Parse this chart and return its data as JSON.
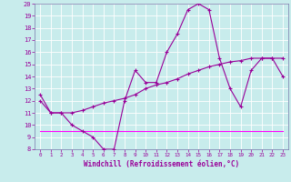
{
  "xlabel": "Windchill (Refroidissement éolien,°C)",
  "background_color": "#c8ecec",
  "line1_x": [
    0,
    1,
    2,
    3,
    4,
    5,
    6,
    7,
    8,
    9,
    10,
    11,
    12,
    13,
    14,
    15,
    16,
    17,
    18,
    19,
    20,
    21,
    22,
    23
  ],
  "line1_y": [
    12.5,
    11.0,
    11.0,
    10.0,
    9.5,
    9.0,
    8.0,
    8.0,
    12.0,
    14.5,
    13.5,
    13.5,
    16.0,
    17.5,
    19.5,
    20.0,
    19.5,
    15.5,
    13.0,
    11.5,
    14.5,
    15.5,
    15.5,
    14.0
  ],
  "line2_x": [
    0,
    1,
    2,
    3,
    4,
    5,
    6,
    7,
    8,
    9,
    10,
    11,
    12,
    13,
    14,
    15,
    16,
    17,
    18,
    19,
    20,
    21,
    22,
    23
  ],
  "line2_y": [
    12.0,
    11.0,
    11.0,
    11.0,
    11.2,
    11.5,
    11.8,
    12.0,
    12.2,
    12.5,
    13.0,
    13.3,
    13.5,
    13.8,
    14.2,
    14.5,
    14.8,
    15.0,
    15.2,
    15.3,
    15.5,
    15.5,
    15.5,
    15.5
  ],
  "line3_x": [
    0,
    23
  ],
  "line3_y": [
    9.5,
    9.5
  ],
  "line1_color": "#990099",
  "line2_color": "#990099",
  "line3_color": "#ff00ff",
  "ylim": [
    8,
    20
  ],
  "xlim": [
    -0.5,
    23.5
  ],
  "yticks": [
    8,
    9,
    10,
    11,
    12,
    13,
    14,
    15,
    16,
    17,
    18,
    19,
    20
  ],
  "xticks": [
    0,
    1,
    2,
    3,
    4,
    5,
    6,
    7,
    8,
    9,
    10,
    11,
    12,
    13,
    14,
    15,
    16,
    17,
    18,
    19,
    20,
    21,
    22,
    23
  ],
  "grid_color": "#ffffff",
  "spine_color": "#7777aa",
  "tick_color": "#990099",
  "label_color": "#990099",
  "xlabel_fontsize": 5.5,
  "ytick_fontsize": 5.0,
  "xtick_fontsize": 4.2
}
